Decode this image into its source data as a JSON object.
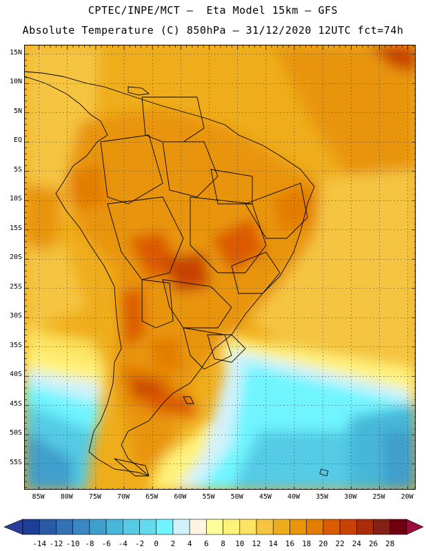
{
  "header": {
    "line1": "CPTEC/INPE/MCT –  Eta Model 15km – GFS",
    "line2": "Absolute Temperature (C) 850hPa – 31/12/2020 12UTC fct=74h"
  },
  "axes": {
    "lat_labels": [
      "15N",
      "10N",
      "5N",
      "EQ",
      "5S",
      "10S",
      "15S",
      "20S",
      "25S",
      "30S",
      "35S",
      "40S",
      "45S",
      "50S",
      "55S"
    ],
    "lat_values": [
      15,
      10,
      5,
      0,
      -5,
      -10,
      -15,
      -20,
      -25,
      -30,
      -35,
      -40,
      -45,
      -50,
      -55
    ],
    "lon_labels": [
      "85W",
      "80W",
      "75W",
      "70W",
      "65W",
      "60W",
      "55W",
      "50W",
      "45W",
      "40W",
      "35W",
      "30W",
      "25W",
      "20W"
    ],
    "lon_values": [
      -85,
      -80,
      -75,
      -70,
      -65,
      -60,
      -55,
      -50,
      -45,
      -40,
      -35,
      -30,
      -25,
      -20
    ]
  },
  "colorbar": {
    "labels": [
      "-14",
      "-12",
      "-10",
      "-8",
      "-6",
      "-4",
      "-2",
      "0",
      "2",
      "4",
      "6",
      "8",
      "10",
      "12",
      "14",
      "16",
      "18",
      "20",
      "22",
      "24",
      "26",
      "28"
    ],
    "colors": [
      "#1c3f95",
      "#2a5aa6",
      "#3572b4",
      "#3b87c1",
      "#3f9fcc",
      "#46b7d9",
      "#55cbe5",
      "#62dbee",
      "#6ff5ff",
      "#d2f2fb",
      "#fff5e0",
      "#ffff99",
      "#fff27a",
      "#fce362",
      "#f5c440",
      "#efad1c",
      "#e89508",
      "#e37d04",
      "#db5a04",
      "#c84204",
      "#a82d08",
      "#842116",
      "#700010"
    ],
    "low_arrow": "#2a3d99",
    "high_arrow": "#9a0c3e"
  }
}
